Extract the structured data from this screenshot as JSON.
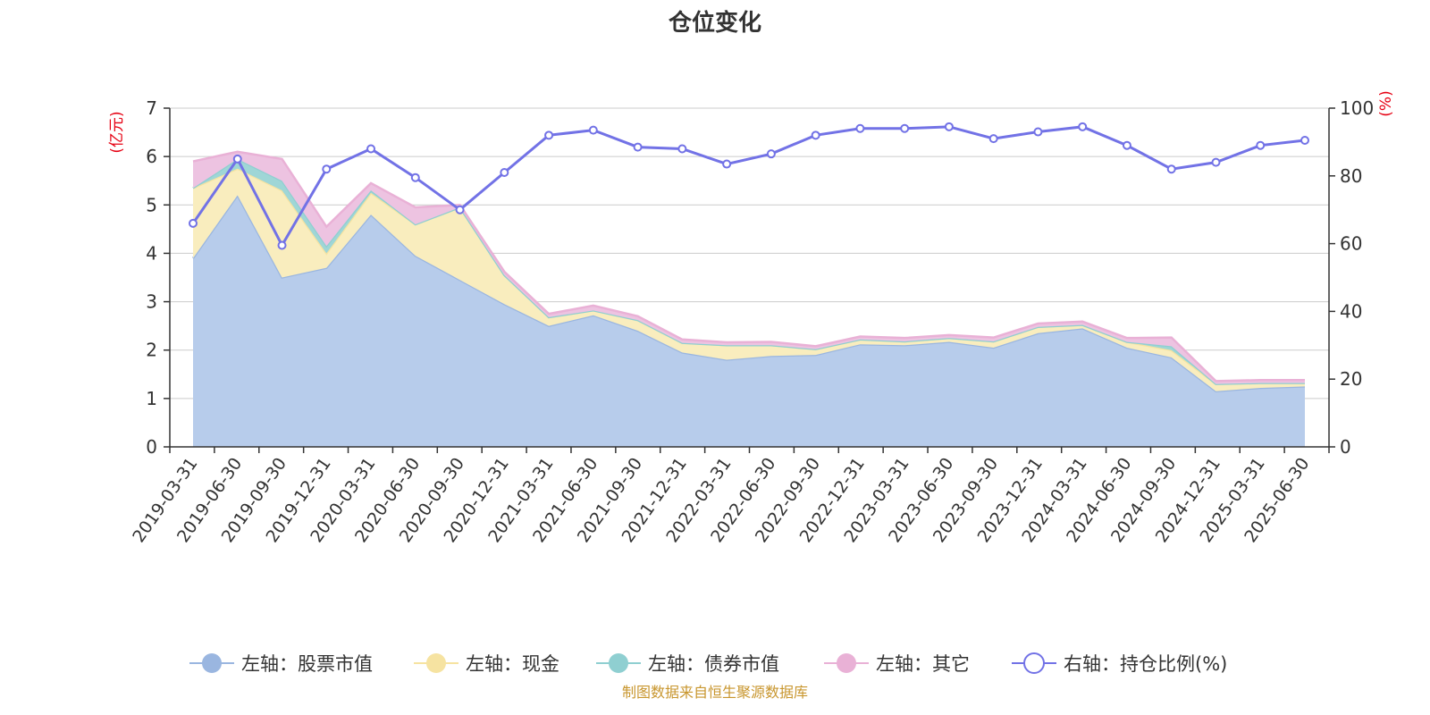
{
  "chart_data": {
    "type": "area",
    "title": "仓位变化",
    "left_axis": {
      "label": "(亿元)",
      "ylim": [
        0,
        7
      ],
      "ticks": [
        "0",
        "1",
        "2",
        "3",
        "4",
        "5",
        "6",
        "7"
      ]
    },
    "right_axis": {
      "label": "(%)",
      "ylim": [
        0,
        100
      ],
      "ticks": [
        "0",
        "20",
        "40",
        "60",
        "80",
        "100"
      ]
    },
    "x_ticks": [
      "2019-03-31",
      "2019-06-30",
      "2019-09-30",
      "2019-12-31",
      "2020-03-31",
      "2020-06-30",
      "2020-09-30",
      "2020-12-31",
      "2021-03-31",
      "2021-06-30",
      "2021-09-30",
      "2021-12-31",
      "2022-03-31",
      "2022-06-30",
      "2022-09-30",
      "2022-12-31",
      "2023-03-31",
      "2023-06-30",
      "2023-09-30",
      "2023-12-31",
      "2024-03-31",
      "2024-06-30",
      "2024-09-30",
      "2024-12-31",
      "2025-03-31",
      "2025-06-30"
    ],
    "stacked": true,
    "grid": true,
    "legend_position": "bottom",
    "series": [
      {
        "name": "左轴：股票市值",
        "axis": "left",
        "kind": "area",
        "color": "#9ab6e0",
        "fill": "#b7cceb",
        "values": [
          3.9,
          5.2,
          3.5,
          3.7,
          4.8,
          3.95,
          3.45,
          2.95,
          2.5,
          2.72,
          2.4,
          1.95,
          1.8,
          1.88,
          1.9,
          2.12,
          2.1,
          2.17,
          2.05,
          2.35,
          2.45,
          2.05,
          1.85,
          1.15,
          1.22,
          1.25
        ]
      },
      {
        "name": "左轴：现金",
        "axis": "left",
        "kind": "area",
        "color": "#f6e3a1",
        "fill": "#f9edbe",
        "values": [
          1.45,
          0.55,
          1.8,
          0.3,
          0.45,
          0.65,
          1.5,
          0.6,
          0.18,
          0.1,
          0.22,
          0.2,
          0.3,
          0.22,
          0.12,
          0.1,
          0.08,
          0.08,
          0.13,
          0.13,
          0.07,
          0.12,
          0.15,
          0.15,
          0.1,
          0.07
        ]
      },
      {
        "name": "左轴：债券市值",
        "axis": "left",
        "kind": "area",
        "color": "#8fcfd1",
        "fill": "#9fd6d6",
        "values": [
          0,
          0.2,
          0.2,
          0.15,
          0.05,
          0,
          0,
          0,
          0,
          0,
          0,
          0,
          0,
          0,
          0,
          0,
          0,
          0,
          0,
          0,
          0,
          0,
          0.08,
          0,
          0,
          0
        ]
      },
      {
        "name": "左轴：其它",
        "axis": "left",
        "kind": "area",
        "color": "#e9b1d6",
        "fill": "#edc3e1",
        "values": [
          0.55,
          0.15,
          0.45,
          0.4,
          0.15,
          0.35,
          0.05,
          0.07,
          0.07,
          0.1,
          0.08,
          0.07,
          0.06,
          0.07,
          0.06,
          0.06,
          0.07,
          0.06,
          0.08,
          0.07,
          0.07,
          0.08,
          0.18,
          0.06,
          0.06,
          0.06
        ]
      },
      {
        "name": "右轴：持仓比例(%)",
        "axis": "right",
        "kind": "line",
        "color": "#7272e6",
        "values": [
          66,
          85,
          59.5,
          82,
          88,
          79.5,
          70,
          81,
          92,
          93.5,
          88.5,
          88,
          83.5,
          86.5,
          92,
          94,
          94,
          94.5,
          91,
          93,
          94.5,
          89,
          82,
          84,
          89,
          90.5
        ]
      }
    ]
  },
  "source_note": "制图数据来自恒生聚源数据库"
}
